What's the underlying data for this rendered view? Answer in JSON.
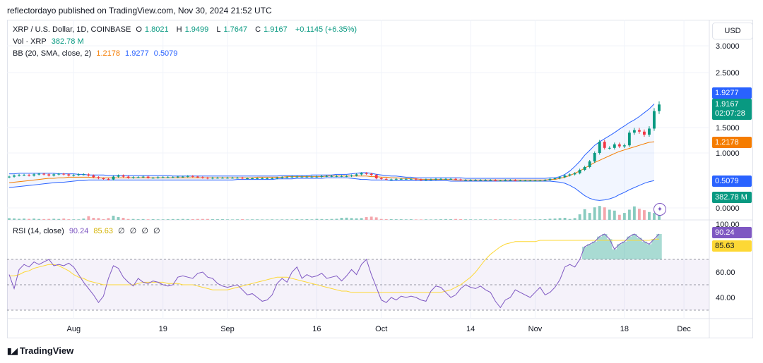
{
  "header": {
    "published": "reflectordayo published on TradingView.com, Nov 30, 2024 21:52 UTC"
  },
  "legend": {
    "symbol": "XRP / U.S. Dollar, 1D, COINBASE",
    "open_label": "O",
    "open": "1.8021",
    "high_label": "H",
    "high": "1.9499",
    "low_label": "L",
    "low": "1.7647",
    "close_label": "C",
    "close": "1.9167",
    "change": "+0.1145 (+6.35%)",
    "vol_label": "Vol · XRP",
    "vol_value": "382.78 M",
    "bb_label": "BB (20, SMA, close, 2)",
    "bb_basis": "1.2178",
    "bb_upper": "1.9277",
    "bb_lower": "0.5079",
    "rsi_label": "RSI (14, close)",
    "rsi_value": "90.24",
    "rsi_ma": "85.63",
    "rsi_extra": [
      "∅",
      "∅",
      "∅",
      "∅"
    ]
  },
  "scale": {
    "currency": "USD"
  },
  "badges": {
    "bb_upper": "1.9277",
    "price": "1.9167",
    "countdown": "02:07:28",
    "bb_basis": "1.2178",
    "bb_lower": "0.5079",
    "volume": "382.78 M",
    "rsi": "90.24",
    "rsi_ma": "85.63"
  },
  "colors": {
    "up": "#089981",
    "down": "#f23645",
    "bb_basis": "#f57c00",
    "bb_band": "#2962ff",
    "rsi_line": "#7e57c2",
    "rsi_ma": "#fdd835",
    "vol_up": "#89cbbf",
    "vol_down": "#f4a6ac"
  },
  "footer": {
    "brand": "TradingView"
  },
  "chart_data": {
    "type": "candlestick",
    "price_axis": {
      "ticks": [
        "3.0000",
        "2.5000",
        "1.5000",
        "1.0000",
        "0.0000"
      ],
      "ylim": [
        0,
        3.2
      ]
    },
    "rsi_axis": {
      "ticks": [
        "100.00",
        "60.00",
        "40.00"
      ],
      "levels": [
        70,
        50,
        30
      ],
      "ylim": [
        20,
        100
      ]
    },
    "x_ticks": [
      "Aug",
      "19",
      "Sep",
      "16",
      "Oct",
      "14",
      "Nov",
      "18",
      "Dec"
    ],
    "start_date": "2024-07-19",
    "series": [
      {
        "name": "Upper Band",
        "values": [
          0.63,
          0.63,
          0.64,
          0.64,
          0.64,
          0.64,
          0.64,
          0.64,
          0.64,
          0.64,
          0.63,
          0.63,
          0.63,
          0.63,
          0.62,
          0.62,
          0.61,
          0.61,
          0.61,
          0.61,
          0.6,
          0.6,
          0.6,
          0.6,
          0.6,
          0.6,
          0.6,
          0.6,
          0.6,
          0.6,
          0.6,
          0.6,
          0.6,
          0.59,
          0.59,
          0.59,
          0.59,
          0.59,
          0.59,
          0.59,
          0.59,
          0.59,
          0.59,
          0.59,
          0.59,
          0.59,
          0.59,
          0.59,
          0.59,
          0.59,
          0.59,
          0.59,
          0.59,
          0.59,
          0.59,
          0.6,
          0.6,
          0.6,
          0.6,
          0.6,
          0.6,
          0.61,
          0.61,
          0.61,
          0.61,
          0.61,
          0.62,
          0.62,
          0.62,
          0.63,
          0.64,
          0.65,
          0.65,
          0.64,
          0.62,
          0.61,
          0.6,
          0.59,
          0.59,
          0.58,
          0.57,
          0.57,
          0.56,
          0.56,
          0.56,
          0.56,
          0.56,
          0.56,
          0.56,
          0.56,
          0.56,
          0.56,
          0.55,
          0.55,
          0.55,
          0.55,
          0.55,
          0.55,
          0.55,
          0.55,
          0.55,
          0.55,
          0.55,
          0.55,
          0.55,
          0.55,
          0.55,
          0.55,
          0.55,
          0.56,
          0.56,
          0.58,
          0.62,
          0.68,
          0.76,
          0.85,
          0.96,
          1.05,
          1.15,
          1.22,
          1.28,
          1.34,
          1.4,
          1.47,
          1.53,
          1.59,
          1.64,
          1.7,
          1.77,
          1.84,
          1.93
        ]
      },
      {
        "name": "Basis",
        "values": [
          0.47,
          0.48,
          0.49,
          0.5,
          0.51,
          0.52,
          0.53,
          0.54,
          0.55,
          0.55,
          0.56,
          0.56,
          0.57,
          0.57,
          0.57,
          0.57,
          0.57,
          0.56,
          0.56,
          0.56,
          0.56,
          0.56,
          0.56,
          0.56,
          0.56,
          0.56,
          0.56,
          0.56,
          0.56,
          0.56,
          0.56,
          0.56,
          0.56,
          0.56,
          0.56,
          0.56,
          0.56,
          0.56,
          0.56,
          0.56,
          0.56,
          0.56,
          0.56,
          0.56,
          0.56,
          0.56,
          0.56,
          0.56,
          0.56,
          0.56,
          0.57,
          0.57,
          0.57,
          0.57,
          0.57,
          0.57,
          0.58,
          0.58,
          0.58,
          0.58,
          0.58,
          0.58,
          0.58,
          0.58,
          0.59,
          0.59,
          0.59,
          0.59,
          0.59,
          0.59,
          0.59,
          0.59,
          0.59,
          0.58,
          0.58,
          0.57,
          0.57,
          0.56,
          0.56,
          0.55,
          0.55,
          0.54,
          0.54,
          0.53,
          0.53,
          0.53,
          0.53,
          0.53,
          0.53,
          0.53,
          0.52,
          0.52,
          0.52,
          0.52,
          0.52,
          0.52,
          0.52,
          0.52,
          0.52,
          0.52,
          0.52,
          0.52,
          0.52,
          0.52,
          0.52,
          0.52,
          0.52,
          0.52,
          0.52,
          0.53,
          0.53,
          0.55,
          0.57,
          0.6,
          0.64,
          0.68,
          0.73,
          0.78,
          0.83,
          0.87,
          0.91,
          0.95,
          0.99,
          1.03,
          1.06,
          1.09,
          1.12,
          1.15,
          1.18,
          1.21,
          1.22
        ]
      },
      {
        "name": "Lower Band",
        "values": [
          0.38,
          0.39,
          0.4,
          0.41,
          0.42,
          0.43,
          0.44,
          0.45,
          0.46,
          0.47,
          0.48,
          0.48,
          0.49,
          0.5,
          0.51,
          0.51,
          0.52,
          0.52,
          0.52,
          0.52,
          0.52,
          0.52,
          0.52,
          0.52,
          0.52,
          0.52,
          0.52,
          0.52,
          0.52,
          0.52,
          0.52,
          0.52,
          0.52,
          0.52,
          0.52,
          0.52,
          0.52,
          0.52,
          0.52,
          0.52,
          0.52,
          0.52,
          0.52,
          0.52,
          0.52,
          0.52,
          0.53,
          0.53,
          0.53,
          0.53,
          0.53,
          0.53,
          0.53,
          0.53,
          0.54,
          0.54,
          0.54,
          0.54,
          0.55,
          0.55,
          0.55,
          0.55,
          0.55,
          0.55,
          0.56,
          0.56,
          0.56,
          0.56,
          0.56,
          0.55,
          0.54,
          0.53,
          0.53,
          0.52,
          0.52,
          0.52,
          0.52,
          0.51,
          0.51,
          0.51,
          0.51,
          0.51,
          0.51,
          0.51,
          0.51,
          0.51,
          0.51,
          0.51,
          0.51,
          0.5,
          0.5,
          0.5,
          0.5,
          0.5,
          0.5,
          0.5,
          0.5,
          0.5,
          0.5,
          0.5,
          0.5,
          0.5,
          0.5,
          0.5,
          0.5,
          0.5,
          0.5,
          0.5,
          0.5,
          0.5,
          0.49,
          0.48,
          0.46,
          0.42,
          0.37,
          0.3,
          0.23,
          0.18,
          0.15,
          0.14,
          0.15,
          0.17,
          0.2,
          0.25,
          0.29,
          0.34,
          0.38,
          0.42,
          0.46,
          0.49,
          0.51
        ]
      },
      {
        "name": "Close",
        "values": [
          0.58,
          0.6,
          0.61,
          0.61,
          0.6,
          0.62,
          0.63,
          0.62,
          0.6,
          0.62,
          0.63,
          0.62,
          0.6,
          0.61,
          0.62,
          0.62,
          0.6,
          0.57,
          0.55,
          0.54,
          0.53,
          0.58,
          0.6,
          0.58,
          0.56,
          0.57,
          0.57,
          0.58,
          0.56,
          0.56,
          0.57,
          0.57,
          0.57,
          0.57,
          0.58,
          0.58,
          0.59,
          0.58,
          0.57,
          0.56,
          0.55,
          0.56,
          0.56,
          0.56,
          0.56,
          0.56,
          0.56,
          0.55,
          0.55,
          0.55,
          0.55,
          0.55,
          0.55,
          0.55,
          0.56,
          0.57,
          0.57,
          0.58,
          0.58,
          0.58,
          0.58,
          0.58,
          0.58,
          0.59,
          0.59,
          0.59,
          0.59,
          0.59,
          0.59,
          0.6,
          0.62,
          0.64,
          0.63,
          0.61,
          0.55,
          0.54,
          0.53,
          0.53,
          0.54,
          0.54,
          0.54,
          0.54,
          0.53,
          0.52,
          0.53,
          0.53,
          0.54,
          0.54,
          0.54,
          0.54,
          0.53,
          0.52,
          0.52,
          0.52,
          0.52,
          0.52,
          0.52,
          0.52,
          0.51,
          0.51,
          0.52,
          0.52,
          0.51,
          0.51,
          0.51,
          0.51,
          0.51,
          0.51,
          0.52,
          0.54,
          0.55,
          0.57,
          0.6,
          0.62,
          0.64,
          0.7,
          0.75,
          0.85,
          1.0,
          1.22,
          1.1,
          1.1,
          1.17,
          1.13,
          1.15,
          1.4,
          1.45,
          1.42,
          1.36,
          1.48,
          1.8,
          1.92
        ]
      },
      {
        "name": "Volume",
        "values": [
          0.38,
          0.33,
          0.24,
          0.3,
          0.22,
          0.3,
          0.2,
          0.18,
          0.21,
          0.25,
          0.2,
          0.3,
          0.14,
          0.13,
          0.12,
          0.3,
          0.8,
          0.45,
          0.4,
          0.15,
          0.4,
          0.9,
          0.6,
          0.45,
          0.2,
          0.2,
          0.14,
          0.18,
          0.12,
          0.15,
          0.12,
          0.12,
          0.14,
          0.18,
          0.18,
          0.2,
          0.18,
          0.15,
          0.2,
          0.2,
          0.2,
          0.15,
          0.14,
          0.15,
          0.12,
          0.1,
          0.12,
          0.15,
          0.1,
          0.12,
          0.12,
          0.1,
          0.1,
          0.12,
          0.1,
          0.11,
          0.12,
          0.11,
          0.18,
          0.12,
          0.15,
          0.12,
          0.22,
          0.18,
          0.15,
          0.2,
          0.25,
          0.45,
          0.48,
          0.4,
          0.35,
          0.4,
          0.6,
          0.7,
          0.55,
          0.2,
          0.15,
          0.16,
          0.14,
          0.14,
          0.12,
          0.14,
          0.1,
          0.1,
          0.12,
          0.1,
          0.12,
          0.14,
          0.18,
          0.15,
          0.2,
          0.16,
          0.12,
          0.12,
          0.1,
          0.12,
          0.12,
          0.1,
          0.14,
          0.12,
          0.12,
          0.11,
          0.1,
          0.1,
          0.1,
          0.1,
          0.12,
          0.13,
          0.15,
          0.25,
          0.3,
          0.4,
          0.45,
          0.2,
          0.4,
          1.2,
          2.3,
          1.5,
          2.7,
          3.0,
          2.7,
          2.2,
          2.0,
          1.1,
          1.5,
          2.2,
          2.9,
          2.4,
          2.1,
          1.7,
          1.5,
          1.2
        ]
      },
      {
        "name": "RSI",
        "values": [
          58,
          47,
          62,
          66,
          64,
          68,
          66,
          68,
          70,
          65,
          66,
          65,
          67,
          64,
          58,
          52,
          47,
          42,
          36,
          41,
          55,
          65,
          63,
          56,
          52,
          49,
          55,
          52,
          51,
          53,
          52,
          50,
          49,
          50,
          56,
          57,
          56,
          55,
          59,
          60,
          56,
          55,
          51,
          49,
          48,
          49,
          50,
          46,
          42,
          43,
          40,
          37,
          38,
          42,
          51,
          55,
          52,
          60,
          64,
          55,
          58,
          56,
          57,
          59,
          55,
          56,
          57,
          53,
          57,
          62,
          58,
          66,
          70,
          58,
          48,
          38,
          36,
          40,
          38,
          41,
          40,
          41,
          40,
          38,
          37,
          45,
          49,
          48,
          44,
          40,
          42,
          47,
          50,
          48,
          47,
          49,
          46,
          44,
          37,
          32,
          38,
          40,
          46,
          44,
          42,
          40,
          44,
          48,
          42,
          44,
          48,
          54,
          64,
          66,
          64,
          70,
          80,
          82,
          84,
          88,
          90,
          86,
          78,
          82,
          84,
          88,
          90,
          87,
          84,
          82,
          86,
          90
        ]
      },
      {
        "name": "RSI MA",
        "values": [
          57,
          57,
          58,
          60,
          61,
          63,
          64,
          65,
          66,
          66,
          65,
          63,
          61,
          58,
          56,
          55,
          53,
          52,
          51,
          50,
          50,
          50,
          50,
          50,
          50,
          50,
          51,
          52,
          52,
          52,
          52,
          52,
          51,
          51,
          51,
          50,
          50,
          50,
          49,
          48,
          47,
          46,
          46,
          46,
          46,
          47,
          48,
          49,
          50,
          51,
          52,
          53,
          54,
          55,
          56,
          56,
          56,
          55,
          54,
          53,
          52,
          51,
          50,
          49,
          48,
          47,
          46,
          45,
          45,
          44,
          44,
          44,
          44,
          44,
          44,
          44,
          44,
          44,
          44,
          44,
          44,
          44,
          44,
          44,
          44,
          44,
          44,
          44,
          45,
          46,
          48,
          50,
          53,
          56,
          60,
          65,
          70,
          74,
          77,
          80,
          82,
          83,
          84,
          84,
          84,
          84,
          84,
          85,
          85,
          85,
          85,
          85,
          85,
          85,
          85,
          85,
          85,
          85,
          85,
          85,
          85,
          85,
          85,
          85,
          85,
          85,
          85,
          85,
          85,
          85,
          86,
          86
        ]
      }
    ]
  }
}
